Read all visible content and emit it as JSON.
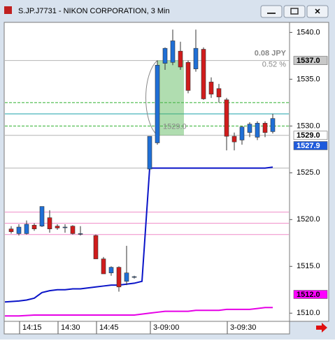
{
  "window_title": "S.JP.J7731 - NIKON CORPORATION, 3 Min",
  "chart_data": {
    "type": "candlestick",
    "categories": [
      null,
      "14:15",
      null,
      null,
      null,
      null,
      "14:30",
      null,
      null,
      null,
      null,
      "14:45",
      null,
      null,
      null,
      null,
      null,
      null,
      "3-09:00",
      null,
      null,
      null,
      null,
      null,
      null,
      null,
      null,
      null,
      "3-09:30",
      null,
      null,
      null,
      null,
      null,
      null
    ],
    "open": [
      1519.0,
      1518.5,
      1518.5,
      1519.4,
      1519.3,
      1520.2,
      1519.3,
      1519.2,
      1519.3,
      1518.5,
      null,
      1518.3,
      1515.8,
      1514.3,
      1514.9,
      1513.4,
      1513.9,
      null,
      1525.4,
      1528.2,
      1536.7,
      1536.8,
      1538.0,
      1536.8,
      1536.1,
      1538.2,
      1534.7,
      1534.0,
      1532.8,
      1528.9,
      1528.5,
      1529.3,
      1528.8,
      1530.3,
      1529.4
    ],
    "high": [
      1519.3,
      1519.5,
      1519.9,
      1519.6,
      1521.4,
      1521.0,
      1519.5,
      1519.5,
      1519.4,
      1519.3,
      null,
      1518.4,
      1516.0,
      1515.0,
      1515.0,
      1517.2,
      1514.0,
      null,
      1528.9,
      1537.0,
      1538.4,
      1540.3,
      1539.0,
      1537.0,
      1540.3,
      1538.4,
      1535.2,
      1534.5,
      1533.0,
      1529.3,
      1530.0,
      1530.4,
      1530.5,
      1530.5,
      1531.3
    ],
    "low": [
      1518.5,
      1518.3,
      1518.4,
      1518.8,
      1519.2,
      1518.6,
      1518.9,
      1518.6,
      1518.4,
      1518.3,
      null,
      1515.8,
      1514.2,
      1514.0,
      1512.3,
      1513.0,
      1513.7,
      null,
      1525.3,
      1528.0,
      1536.0,
      1536.5,
      1536.0,
      1533.5,
      1535.8,
      1532.8,
      1533.0,
      1532.5,
      1527.4,
      1527.4,
      1528.0,
      1528.8,
      1528.5,
      1528.8,
      1529.2
    ],
    "close": [
      1518.7,
      1519.2,
      1519.5,
      1519.0,
      1521.4,
      1519.0,
      1519.1,
      1519.2,
      1518.5,
      1518.5,
      null,
      1515.8,
      1514.2,
      1514.9,
      1512.8,
      1514.3,
      1513.9,
      null,
      1528.9,
      1536.5,
      1538.3,
      1539.1,
      1536.3,
      1533.8,
      1538.3,
      1532.9,
      1533.4,
      1533.1,
      1528.9,
      1528.3,
      1529.9,
      1530.2,
      1530.3,
      1529.3,
      1530.8
    ],
    "up_color": "#1f6fd6",
    "down_color": "#d01c1c",
    "lines": [
      {
        "color": "#0a14c8",
        "values": [
          1511.2,
          1511.3,
          1511.4,
          1511.6,
          1512.2,
          1512.4,
          1512.5,
          1512.5,
          1512.6,
          1512.6,
          1512.7,
          1512.8,
          1512.9,
          1513.0,
          1513.0,
          1513.1,
          1513.2,
          1513.4,
          1525.5,
          1525.5,
          1525.5,
          1525.5,
          1525.5,
          1525.5,
          1525.5,
          1525.5,
          1525.5,
          1525.5,
          1525.5,
          1525.5,
          1525.5,
          1525.5,
          1525.5,
          1525.5,
          1525.6
        ]
      },
      {
        "color": "#e600e6",
        "values": [
          1509.7,
          1509.7,
          1509.75,
          1509.8,
          1509.8,
          1509.8,
          1509.8,
          1509.8,
          1509.8,
          1509.8,
          1509.8,
          1509.8,
          1509.8,
          1509.8,
          1509.8,
          1509.8,
          1509.8,
          1509.9,
          1510.0,
          1510.1,
          1510.2,
          1510.2,
          1510.2,
          1510.2,
          1510.3,
          1510.3,
          1510.3,
          1510.3,
          1510.4,
          1510.4,
          1510.4,
          1510.4,
          1510.5,
          1510.6,
          1510.6
        ]
      }
    ],
    "levels": [
      {
        "value": 1537.0,
        "color": "#b4b4b4",
        "dash": false
      },
      {
        "value": 1529.0,
        "color": "#b4b4b4",
        "dash": false
      },
      {
        "value": 1532.5,
        "color": "#2fb02f",
        "dash": true
      },
      {
        "value": 1530.0,
        "color": "#2fb02f",
        "dash": true
      },
      {
        "value": 1531.3,
        "color": "#1aa0a8",
        "dash": false
      },
      {
        "value": 1525.5,
        "color": "#b4b4b4",
        "dash": false
      },
      {
        "value": 1520.8,
        "color": "#f08cc8",
        "dash": false
      },
      {
        "value": 1519.6,
        "color": "#f08cc8",
        "dash": false
      },
      {
        "value": 1518.4,
        "color": "#f08cc8",
        "dash": false
      }
    ],
    "price_tags": [
      {
        "value": 1537.0,
        "label": "1537.0",
        "bg": "#c8c8c8",
        "fg": "#000000"
      },
      {
        "value": 1529.0,
        "label": "1529.0",
        "bg": "#ffffff",
        "fg": "#000000"
      },
      {
        "value": 1527.9,
        "label": "1527.9",
        "bg": "#1e5adc",
        "fg": "#ffffff"
      },
      {
        "value": 1512.0,
        "label": "1512.0",
        "bg": "#ff00ff",
        "fg": "#000000"
      }
    ],
    "annotations": [
      "0.08 JPY",
      "0.52 %",
      "1529.0"
    ],
    "ylim": [
      1509.2,
      1541.0
    ],
    "yticks": [
      {
        "value": 1510,
        "label": "1510.0"
      },
      {
        "value": 1515,
        "label": "1515.0"
      },
      {
        "value": 1520,
        "label": "1520.0"
      },
      {
        "value": 1525,
        "label": "1525.0"
      },
      {
        "value": 1530,
        "label": "1530.0"
      },
      {
        "value": 1535,
        "label": "1535.0"
      },
      {
        "value": 1540,
        "label": "1540.0"
      }
    ]
  }
}
